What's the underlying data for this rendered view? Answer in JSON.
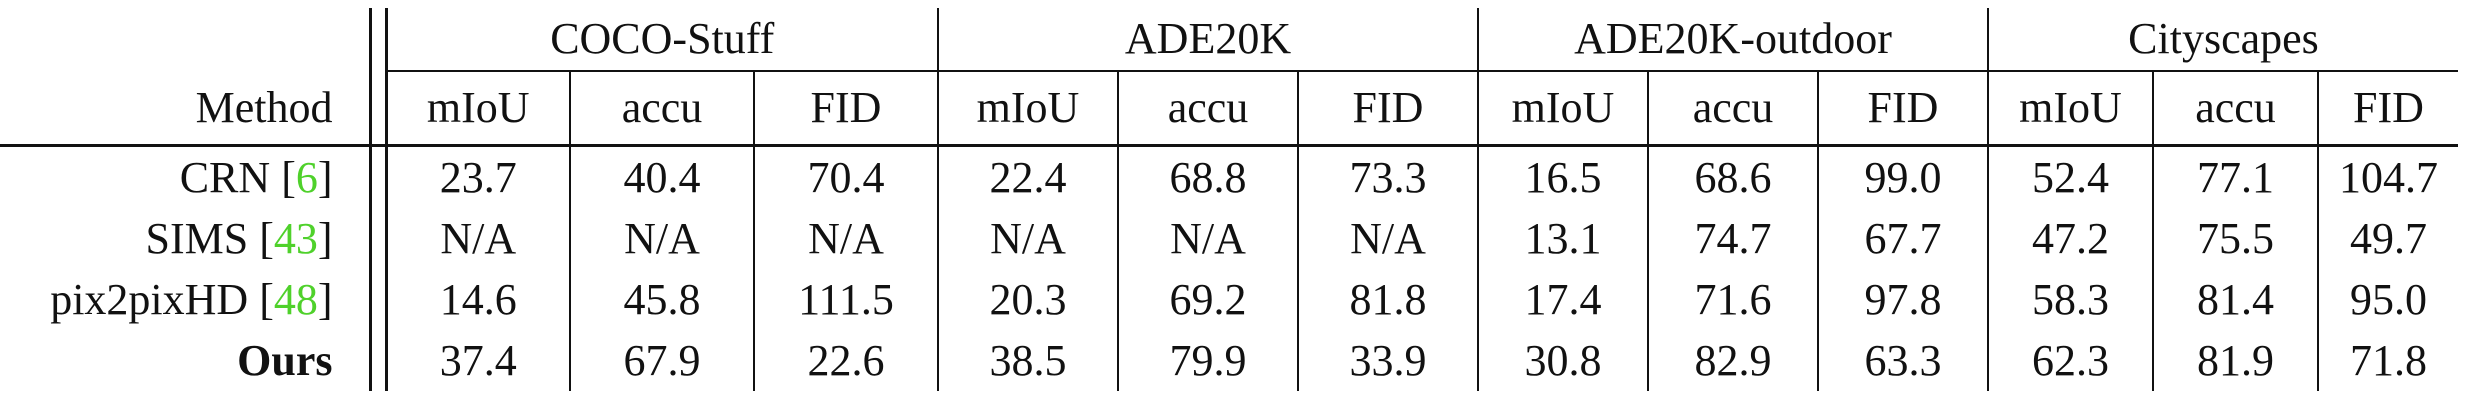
{
  "table": {
    "method_header": "Method",
    "datasets": [
      "COCO-Stuff",
      "ADE20K",
      "ADE20K-outdoor",
      "Cityscapes"
    ],
    "metrics": [
      "mIoU",
      "accu",
      "FID"
    ],
    "rows": [
      {
        "name": "CRN",
        "cite": "6",
        "cells": [
          {
            "v": "23.7"
          },
          {
            "v": "40.4"
          },
          {
            "v": "70.4"
          },
          {
            "v": "22.4"
          },
          {
            "v": "68.8"
          },
          {
            "v": "73.3"
          },
          {
            "v": "16.5"
          },
          {
            "v": "68.6"
          },
          {
            "v": "99.0"
          },
          {
            "v": "52.4"
          },
          {
            "v": "77.1"
          },
          {
            "v": "104.7"
          }
        ]
      },
      {
        "name": "SIMS",
        "cite": "43",
        "cells": [
          {
            "v": "N/A"
          },
          {
            "v": "N/A"
          },
          {
            "v": "N/A"
          },
          {
            "v": "N/A"
          },
          {
            "v": "N/A"
          },
          {
            "v": "N/A"
          },
          {
            "v": "13.1"
          },
          {
            "v": "74.7"
          },
          {
            "v": "67.7"
          },
          {
            "v": "47.2"
          },
          {
            "v": "75.5"
          },
          {
            "v": "49.7",
            "bold": true
          }
        ]
      },
      {
        "name": "pix2pixHD",
        "cite": "48",
        "cells": [
          {
            "v": "14.6"
          },
          {
            "v": "45.8"
          },
          {
            "v": "111.5"
          },
          {
            "v": "20.3"
          },
          {
            "v": "69.2"
          },
          {
            "v": "81.8"
          },
          {
            "v": "17.4"
          },
          {
            "v": "71.6"
          },
          {
            "v": "97.8"
          },
          {
            "v": "58.3"
          },
          {
            "v": "81.4"
          },
          {
            "v": "95.0"
          }
        ]
      },
      {
        "name": "Ours",
        "cite": "",
        "bold_name": true,
        "cells": [
          {
            "v": "37.4",
            "bold": true
          },
          {
            "v": "67.9",
            "bold": true
          },
          {
            "v": "22.6",
            "bold": true
          },
          {
            "v": "38.5",
            "bold": true
          },
          {
            "v": "79.9",
            "bold": true
          },
          {
            "v": "33.9",
            "bold": true
          },
          {
            "v": "30.8",
            "bold": true
          },
          {
            "v": "82.9",
            "bold": true
          },
          {
            "v": "63.3",
            "bold": true
          },
          {
            "v": "62.3",
            "bold": true
          },
          {
            "v": "81.9",
            "bold": true
          },
          {
            "v": "71.8"
          }
        ]
      }
    ]
  }
}
